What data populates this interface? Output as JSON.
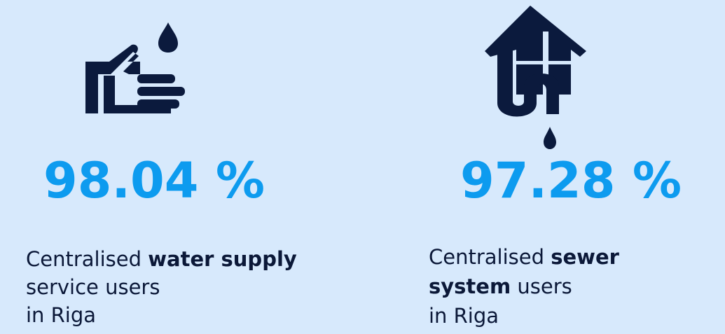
{
  "items": [
    {
      "value": "98.04 %",
      "lines": [
        [
          {
            "text": "Centralised ",
            "bold": false
          },
          {
            "text": "water supply",
            "bold": true
          }
        ],
        [
          {
            "text": "service users",
            "bold": false
          }
        ],
        [
          {
            "text": "in Riga",
            "bold": false
          }
        ]
      ]
    },
    {
      "value": "97.28 %",
      "lines": [
        [
          {
            "text": "Centralised ",
            "bold": false
          },
          {
            "text": "sewer",
            "bold": true
          }
        ],
        [
          {
            "text": "system",
            "bold": true
          },
          {
            "text": " users",
            "bold": false
          }
        ],
        [
          {
            "text": "in Riga",
            "bold": false
          }
        ]
      ]
    }
  ]
}
